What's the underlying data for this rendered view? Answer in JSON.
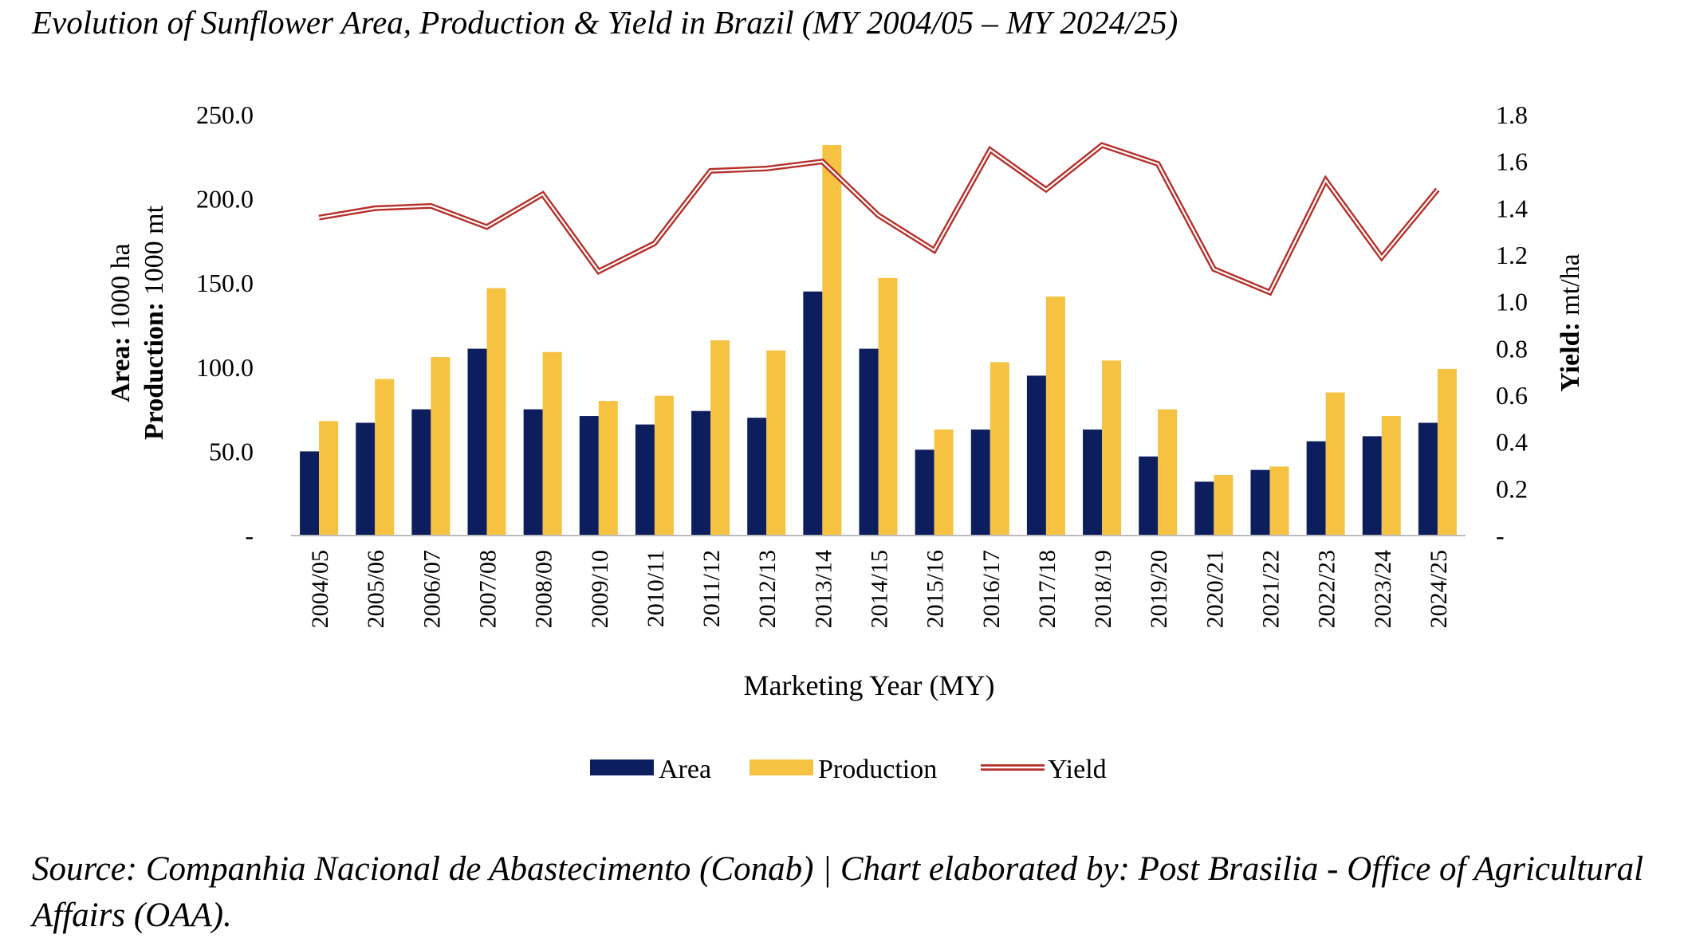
{
  "title": "Evolution of Sunflower Area, Production & Yield in Brazil (MY 2004/05 – MY 2024/25)",
  "source": "Source: Companhia Nacional de Abastecimento (Conab) | Chart elaborated by: Post Brasilia - Office of Agricultural Affairs (OAA).",
  "colors": {
    "area": "#0d1e5e",
    "production": "#f5c242",
    "yield": "#b5302a",
    "axis": "#bbbbbb"
  },
  "chart_data": {
    "type": "bar",
    "title": "Evolution of Sunflower Area, Production & Yield in Brazil (MY 2004/05 – MY 2024/25)",
    "xlabel": "Marketing Year (MY)",
    "ylabel_left": {
      "bold": "Area:",
      "rest": " 1000 ha",
      "bold2": "Production:",
      "rest2": " 1000 mt"
    },
    "ylabel_right": {
      "bold": "Yield:",
      "rest": " mt/ha"
    },
    "ylim_left": [
      0,
      250
    ],
    "ylim_right": [
      0,
      1.8
    ],
    "yticks_left": [
      "-",
      "50.0",
      "100.0",
      "150.0",
      "200.0",
      "250.0"
    ],
    "yticks_right": [
      "-",
      "0.2",
      "0.4",
      "0.6",
      "0.8",
      "1.0",
      "1.2",
      "1.4",
      "1.6",
      "1.8"
    ],
    "grid": false,
    "legend_position": "bottom",
    "categories": [
      "2004/05",
      "2005/06",
      "2006/07",
      "2007/08",
      "2008/09",
      "2009/10",
      "2010/11",
      "2011/12",
      "2012/13",
      "2013/14",
      "2014/15",
      "2015/16",
      "2016/17",
      "2017/18",
      "2018/19",
      "2019/20",
      "2020/21",
      "2021/22",
      "2022/23",
      "2023/24",
      "2024/25"
    ],
    "series": [
      {
        "name": "Area",
        "type": "bar",
        "axis": "left",
        "values": [
          50,
          67,
          75,
          111,
          75,
          71,
          66,
          74,
          70,
          145,
          111,
          51,
          63,
          95,
          63,
          47,
          32,
          39,
          56,
          59,
          67
        ]
      },
      {
        "name": "Production",
        "type": "bar",
        "axis": "left",
        "values": [
          68,
          93,
          106,
          147,
          109,
          80,
          83,
          116,
          110,
          232,
          153,
          63,
          103,
          142,
          104,
          75,
          36,
          41,
          85,
          71,
          99
        ]
      },
      {
        "name": "Yield",
        "type": "line",
        "axis": "right",
        "values": [
          1.36,
          1.4,
          1.41,
          1.32,
          1.46,
          1.13,
          1.25,
          1.56,
          1.57,
          1.6,
          1.37,
          1.22,
          1.65,
          1.48,
          1.67,
          1.59,
          1.14,
          1.04,
          1.52,
          1.19,
          1.48
        ]
      }
    ]
  }
}
